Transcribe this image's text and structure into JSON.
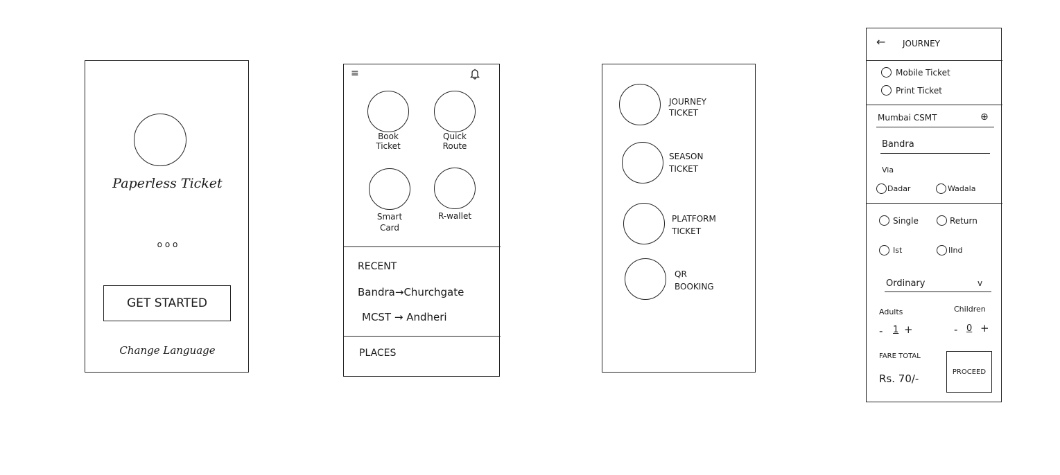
{
  "screen1": {
    "title": "Paperless Ticket",
    "pager_dots": "o o o",
    "get_started": "GET STARTED",
    "change_language": "Change Language"
  },
  "screen2": {
    "menu_icon": "≡",
    "bell_icon": "🔔",
    "tiles": [
      {
        "label": "Book\nTicket"
      },
      {
        "label": "Quick\nRoute"
      },
      {
        "label": "Smart\nCard"
      },
      {
        "label": "R-wallet"
      }
    ],
    "recent_heading": "RECENT",
    "recent_items": [
      "Bandra→Churchgate",
      "MCST → Andheri"
    ],
    "places_heading": "PLACES"
  },
  "screen3": {
    "options": [
      {
        "label": "JOURNEY\nTICKET"
      },
      {
        "label": "SEASON\nTICKET"
      },
      {
        "label": "PLATFORM\nTICKET"
      },
      {
        "label": "QR\nBOOKING"
      }
    ]
  },
  "screen4": {
    "back_arrow": "←",
    "header_title": "JOURNEY",
    "ticket_options": [
      "Mobile Ticket",
      "Print Ticket"
    ],
    "source_value": "Mumbai CSMT",
    "locate_icon": "⊕",
    "destination_value": "Bandra",
    "via_label": "Via",
    "via_options": [
      "Dadar",
      "Wadala"
    ],
    "trip_options": [
      "Single",
      "Return"
    ],
    "class_options": [
      "Ist",
      "IInd"
    ],
    "ticket_type_value": "Ordinary",
    "dropdown_chevron": "v",
    "adults_label": "Adults",
    "children_label": "Children",
    "minus": "-",
    "plus": "+",
    "adults_count": "1",
    "children_count": "0",
    "fare_total_label": "FARE TOTAL",
    "fare_amount": "Rs. 70/-",
    "proceed": "PROCEED"
  }
}
